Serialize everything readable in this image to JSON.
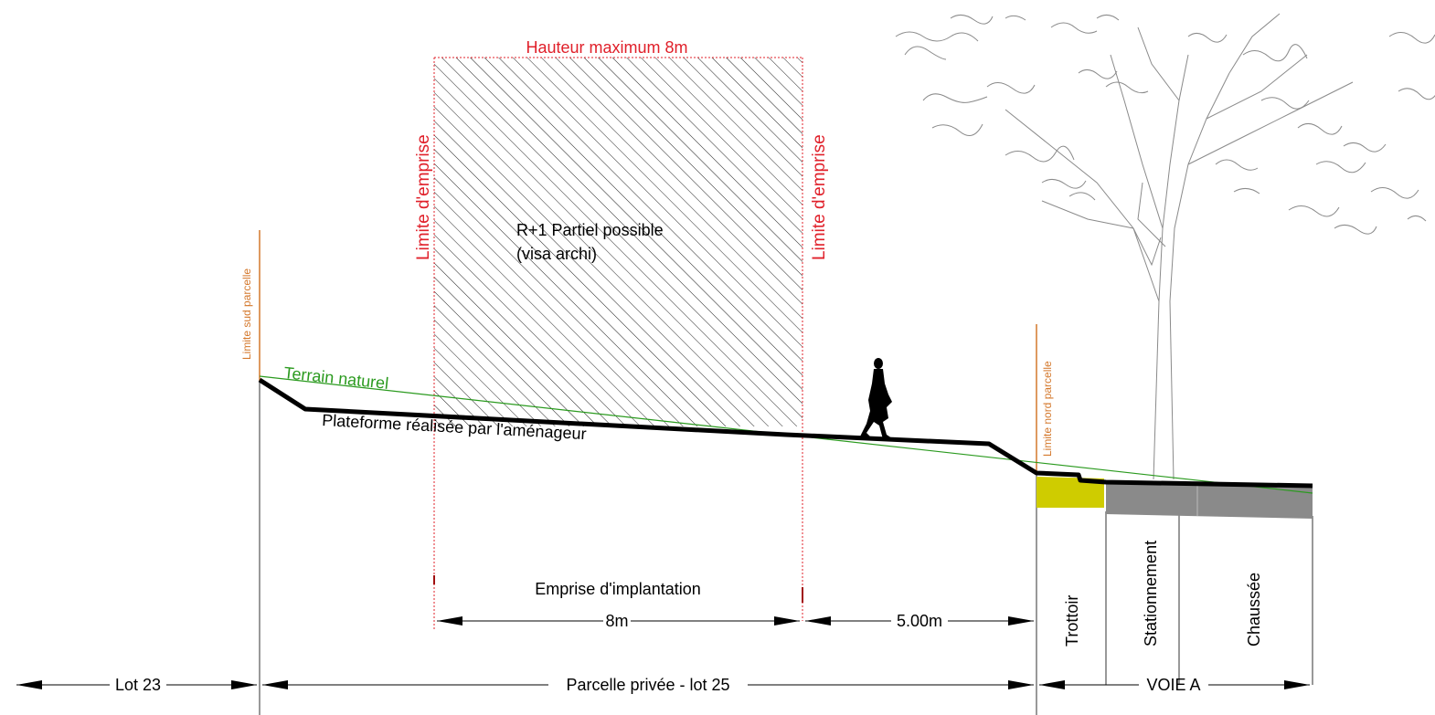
{
  "labels": {
    "hauteur_max": "Hauteur maximum 8m",
    "limite_emprise_left": "Limite d'emprise",
    "limite_emprise_right": "Limite d'emprise",
    "r1_line1": "R+1 Partiel possible",
    "r1_line2": "(visa archi)",
    "limite_sud": "Limite sud parcelle",
    "limite_nord": "Limite nord parcelle",
    "terrain_naturel": "Terrain naturel",
    "plateforme": "Plateforme réalisée par l'aménageur",
    "emprise_implantation": "Emprise d'implantation",
    "dim_8m": "8m",
    "dim_5m": "5.00m",
    "trottoir": "Trottoir",
    "stationnement": "Stationnement",
    "chaussee": "Chaussée",
    "lot23": "Lot 23",
    "parcelle_privee": "Parcelle privée - lot 25",
    "voie_a": "VOIE A"
  },
  "colors": {
    "red": "#e0202a",
    "orange": "#d4782c",
    "green": "#2a9a1e",
    "yellow_green": "#cfcc00",
    "road_gray": "#8a8a8a",
    "black": "#000000"
  }
}
